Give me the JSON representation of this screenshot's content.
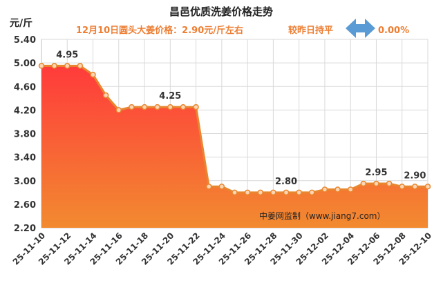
{
  "chart_data": {
    "type": "area",
    "title": "昌邑优质洗姜价格走势",
    "subtitle": "12月10日圆头大姜价格：2.90元/斤左右",
    "compare_text": "较昨日持平",
    "change_value": "0.00%",
    "ylabel": "元/斤",
    "ylim": [
      2.2,
      5.4
    ],
    "yticks": [
      "5.40",
      "5.00",
      "4.60",
      "4.20",
      "3.80",
      "3.40",
      "3.00",
      "2.60",
      "2.20"
    ],
    "xtick_labels": [
      "25-11-10",
      "25-11-12",
      "25-11-14",
      "25-11-16",
      "25-11-18",
      "25-11-20",
      "25-11-22",
      "25-11-24",
      "25-11-26",
      "25-11-28",
      "25-11-30",
      "25-12-02",
      "25-12-04",
      "25-12-06",
      "25-12-08",
      "25-12-10"
    ],
    "x": [
      "25-11-10",
      "25-11-11",
      "25-11-12",
      "25-11-13",
      "25-11-14",
      "25-11-15",
      "25-11-16",
      "25-11-17",
      "25-11-18",
      "25-11-19",
      "25-11-20",
      "25-11-21",
      "25-11-22",
      "25-11-23",
      "25-11-24",
      "25-11-25",
      "25-11-26",
      "25-11-27",
      "25-11-28",
      "25-11-29",
      "25-11-30",
      "25-12-01",
      "25-12-02",
      "25-12-03",
      "25-12-04",
      "25-12-05",
      "25-12-06",
      "25-12-07",
      "25-12-08",
      "25-12-09",
      "25-12-10"
    ],
    "values": [
      4.95,
      4.95,
      4.95,
      4.95,
      4.8,
      4.45,
      4.2,
      4.25,
      4.25,
      4.25,
      4.25,
      4.25,
      4.25,
      2.9,
      2.9,
      2.8,
      2.8,
      2.8,
      2.8,
      2.8,
      2.8,
      2.8,
      2.85,
      2.85,
      2.85,
      2.95,
      2.95,
      2.95,
      2.9,
      2.9,
      2.9
    ],
    "data_labels": [
      {
        "index": 2,
        "text": "4.95"
      },
      {
        "index": 10,
        "text": "4.25"
      },
      {
        "index": 19,
        "text": "2.80"
      },
      {
        "index": 26,
        "text": "2.95"
      },
      {
        "index": 29,
        "text": "2.90"
      }
    ],
    "watermark": "中姜网监制（www.jiang7.com）",
    "grid": true,
    "legend": "none",
    "colors": {
      "line": "#e8872f",
      "marker_fill": "#fcd5b4",
      "area_top": "#ff3b3b",
      "area_bottom": "#f28a30",
      "arrow": "#5b9bd5",
      "subtitle": "#ed7d31"
    }
  }
}
